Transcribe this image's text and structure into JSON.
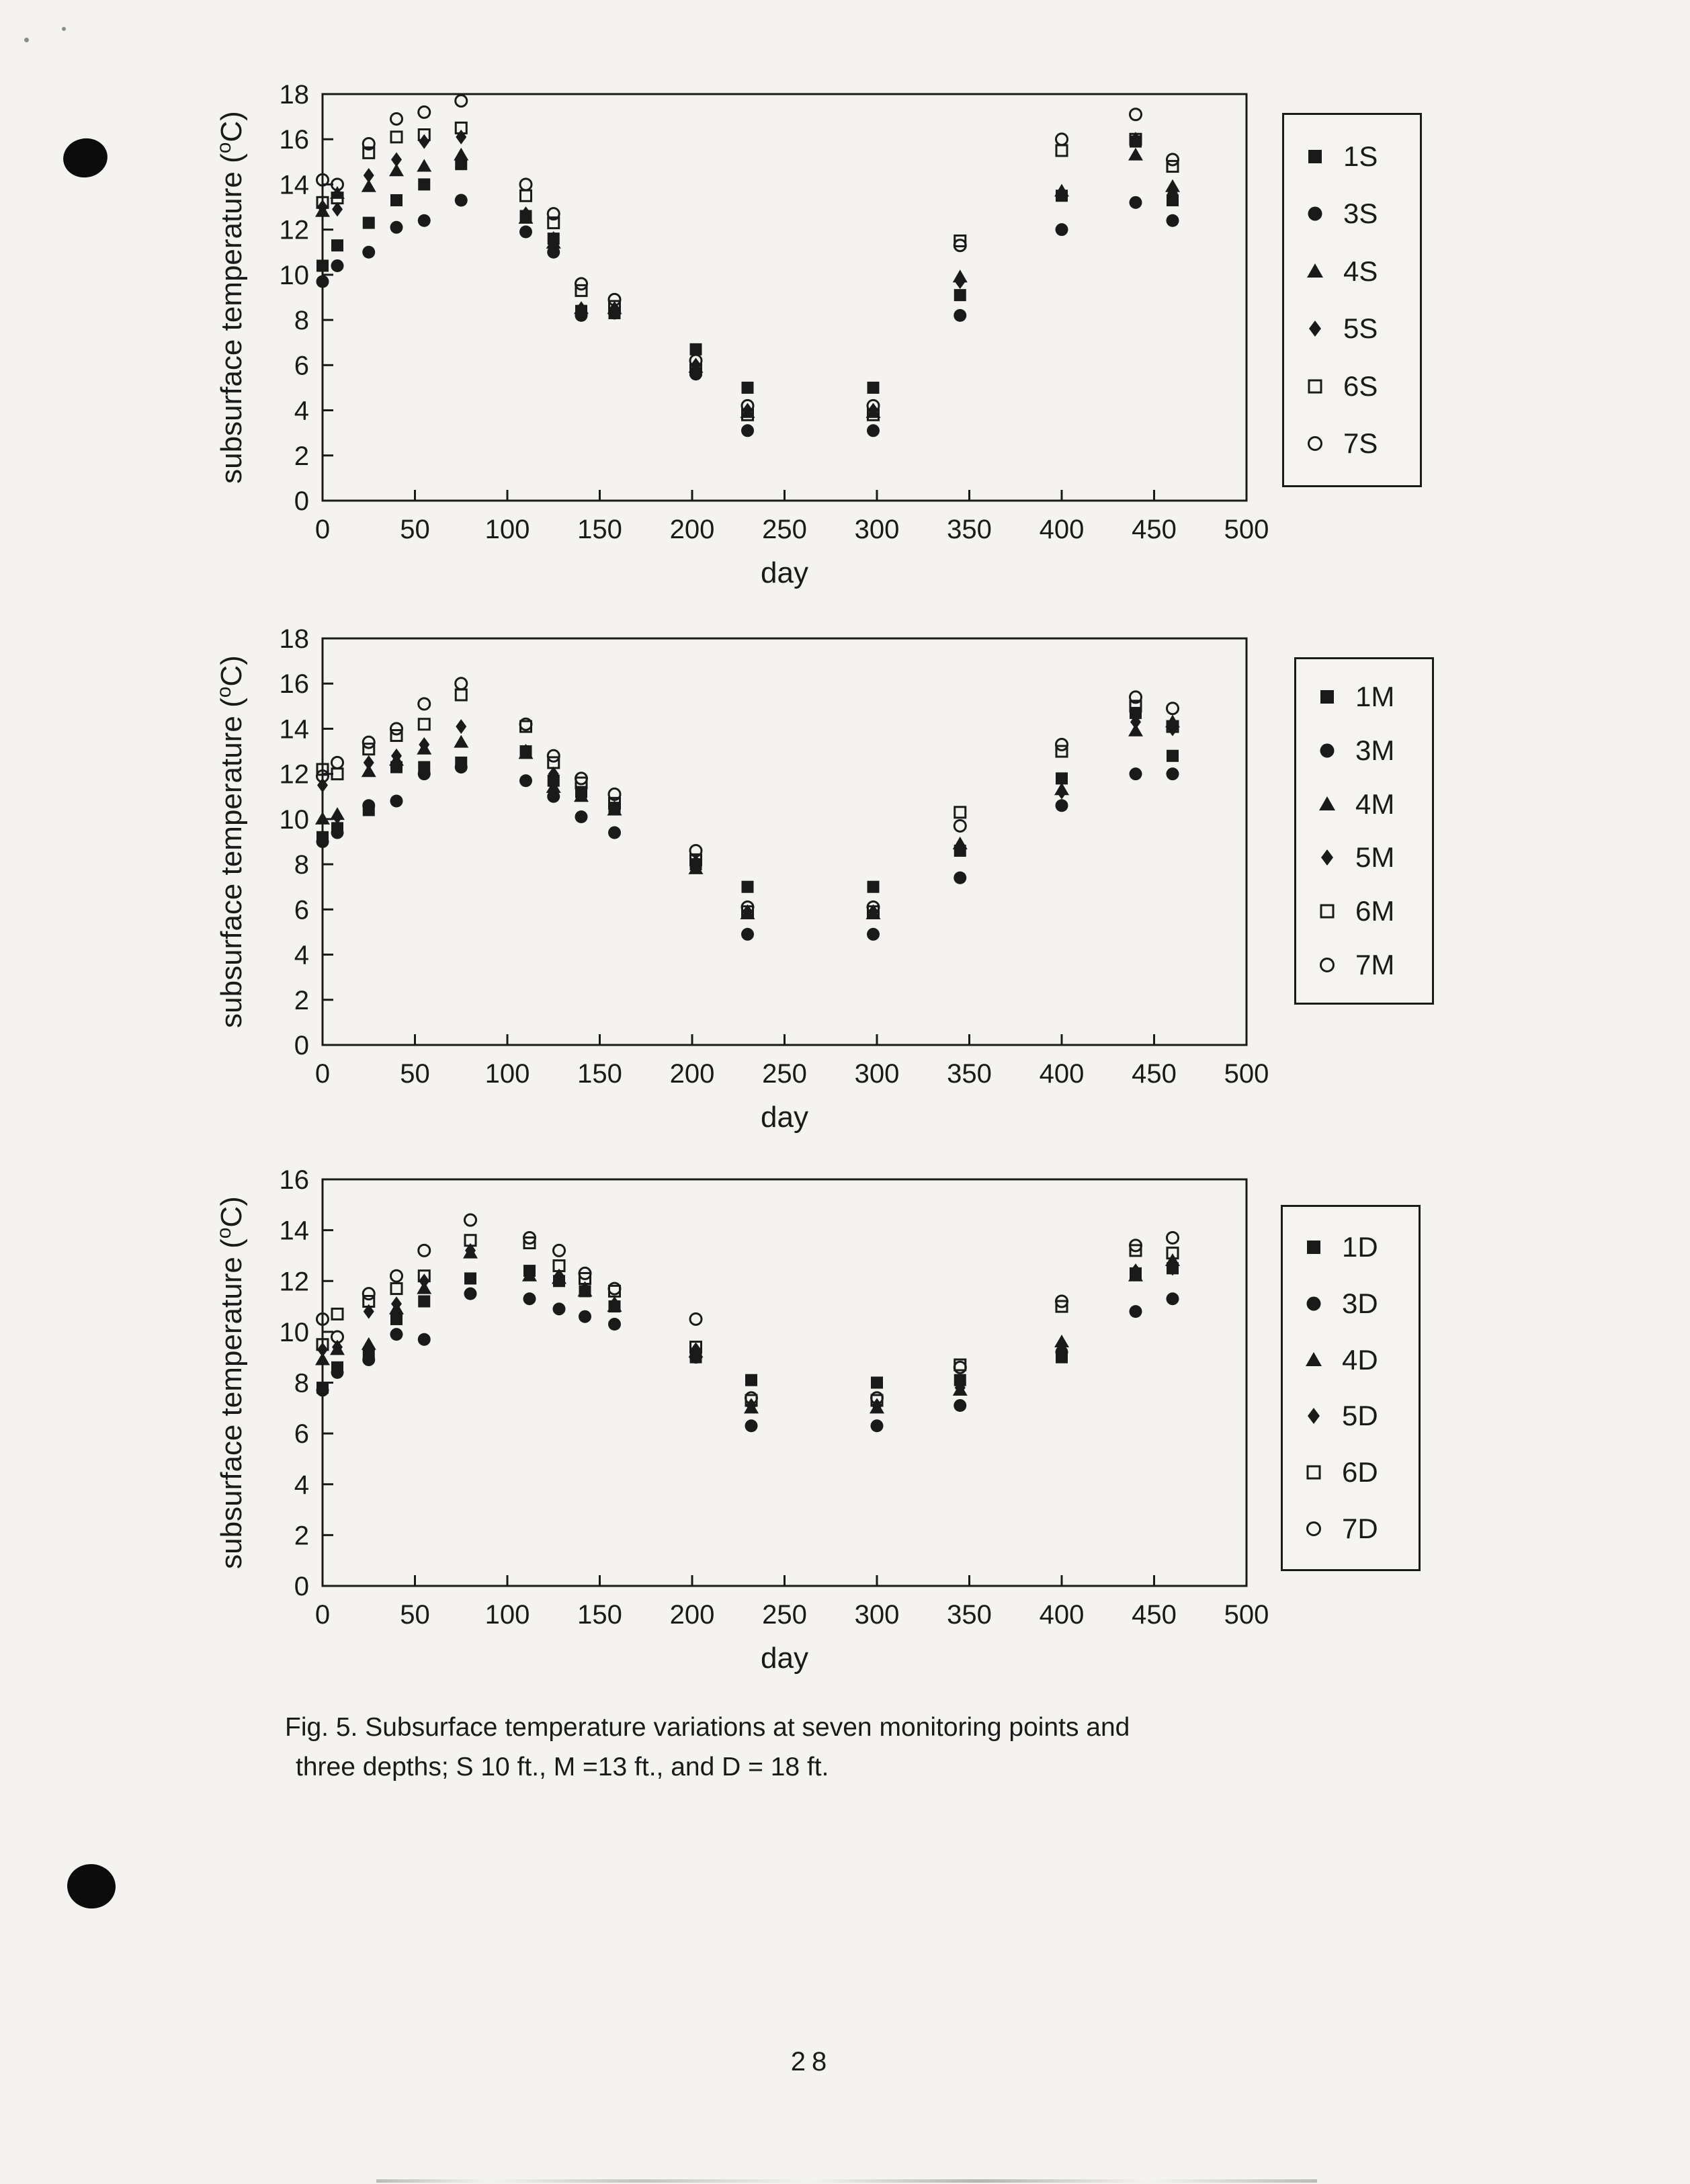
{
  "colors": {
    "ink": "#1a1a1a",
    "paper": "#f4f3ef"
  },
  "caption": {
    "line1": "Fig. 5.  Subsurface temperature variations at seven monitoring points and",
    "line2": "three depths; S 10 ft., M =13 ft., and D = 18 ft."
  },
  "page_number": "28",
  "chart_data": [
    {
      "type": "scatter",
      "title": "",
      "xlabel": "day",
      "ylabel": "subsurface temperature (°C)",
      "xlim": [
        0,
        500
      ],
      "ylim": [
        0,
        18
      ],
      "xticks": [
        0,
        50,
        100,
        150,
        200,
        250,
        300,
        350,
        400,
        450,
        500
      ],
      "yticks": [
        0,
        2,
        4,
        6,
        8,
        10,
        12,
        14,
        16,
        18
      ],
      "grid": false,
      "legend_position": "right-outside",
      "x": [
        0,
        8,
        25,
        40,
        55,
        75,
        110,
        125,
        140,
        158,
        202,
        230,
        298,
        345,
        400,
        440,
        460
      ],
      "series": [
        {
          "name": "1S",
          "marker": "filled-square",
          "values": [
            10.4,
            11.3,
            12.3,
            13.3,
            14.0,
            14.9,
            12.6,
            11.6,
            8.4,
            8.3,
            6.7,
            5.0,
            5.0,
            9.1,
            13.5,
            15.9,
            13.3
          ]
        },
        {
          "name": "3S",
          "marker": "filled-circle",
          "values": [
            9.7,
            10.4,
            11.0,
            12.1,
            12.4,
            13.3,
            11.9,
            11.0,
            8.2,
            8.3,
            5.6,
            3.1,
            3.1,
            8.2,
            12.0,
            13.2,
            12.4
          ]
        },
        {
          "name": "4S",
          "marker": "filled-triangle",
          "values": [
            12.8,
            13.6,
            13.9,
            14.6,
            14.8,
            15.3,
            12.5,
            11.4,
            8.5,
            8.5,
            5.9,
            3.9,
            3.9,
            9.9,
            13.7,
            15.3,
            13.9
          ]
        },
        {
          "name": "5S",
          "marker": "filled-diamond",
          "values": [
            13.0,
            12.9,
            14.4,
            15.1,
            15.9,
            16.1,
            12.7,
            11.6,
            8.5,
            8.5,
            6.0,
            4.0,
            4.0,
            9.7,
            13.6,
            16.0,
            13.6
          ]
        },
        {
          "name": "6S",
          "marker": "open-square",
          "values": [
            13.2,
            13.4,
            15.4,
            16.1,
            16.2,
            16.5,
            13.5,
            12.3,
            9.3,
            8.6,
            5.8,
            3.8,
            3.8,
            11.5,
            15.5,
            16.0,
            14.8
          ]
        },
        {
          "name": "7S",
          "marker": "open-circle",
          "values": [
            14.2,
            14.0,
            15.8,
            16.9,
            17.2,
            17.7,
            14.0,
            12.7,
            9.6,
            8.9,
            6.2,
            4.2,
            4.2,
            11.3,
            16.0,
            17.1,
            15.1
          ]
        }
      ]
    },
    {
      "type": "scatter",
      "title": "",
      "xlabel": "day",
      "ylabel": "subsurface temperature (°C)",
      "xlim": [
        0,
        500
      ],
      "ylim": [
        0,
        18
      ],
      "xticks": [
        0,
        50,
        100,
        150,
        200,
        250,
        300,
        350,
        400,
        450,
        500
      ],
      "yticks": [
        0,
        2,
        4,
        6,
        8,
        10,
        12,
        14,
        16,
        18
      ],
      "grid": false,
      "legend_position": "right-outside",
      "x": [
        0,
        8,
        25,
        40,
        55,
        75,
        110,
        125,
        140,
        158,
        202,
        230,
        298,
        345,
        400,
        440,
        460
      ],
      "series": [
        {
          "name": "1M",
          "marker": "filled-square",
          "values": [
            9.2,
            9.6,
            10.4,
            12.3,
            12.3,
            12.5,
            13.0,
            11.7,
            11.2,
            10.5,
            8.0,
            7.0,
            7.0,
            8.6,
            11.8,
            14.7,
            12.8
          ]
        },
        {
          "name": "3M",
          "marker": "filled-circle",
          "values": [
            9.0,
            9.4,
            10.6,
            10.8,
            12.0,
            12.3,
            11.7,
            11.0,
            10.1,
            9.4,
            8.0,
            4.9,
            4.9,
            7.4,
            10.6,
            12.0,
            12.0
          ]
        },
        {
          "name": "4M",
          "marker": "filled-triangle",
          "values": [
            10.0,
            10.2,
            12.1,
            12.6,
            13.1,
            13.4,
            12.9,
            11.4,
            11.0,
            10.4,
            7.8,
            5.8,
            5.8,
            8.9,
            11.3,
            13.9,
            14.3
          ]
        },
        {
          "name": "5M",
          "marker": "filled-diamond",
          "values": [
            11.5,
            10.1,
            12.5,
            12.8,
            13.3,
            14.1,
            13.0,
            12.0,
            11.1,
            10.5,
            8.1,
            5.9,
            5.9,
            8.8,
            11.2,
            14.3,
            14.0
          ]
        },
        {
          "name": "6M",
          "marker": "open-square",
          "values": [
            12.2,
            12.0,
            13.1,
            13.7,
            14.2,
            15.5,
            14.1,
            12.5,
            11.6,
            10.7,
            8.2,
            5.9,
            5.9,
            10.3,
            13.0,
            15.0,
            14.1
          ]
        },
        {
          "name": "7M",
          "marker": "open-circle",
          "values": [
            11.9,
            12.5,
            13.4,
            14.0,
            15.1,
            16.0,
            14.2,
            12.8,
            11.8,
            11.1,
            8.6,
            6.1,
            6.1,
            9.7,
            13.3,
            15.4,
            14.9
          ]
        }
      ]
    },
    {
      "type": "scatter",
      "title": "",
      "xlabel": "day",
      "ylabel": "subsurface temperature (°C)",
      "xlim": [
        0,
        500
      ],
      "ylim": [
        0,
        16
      ],
      "xticks": [
        0,
        50,
        100,
        150,
        200,
        250,
        300,
        350,
        400,
        450,
        500
      ],
      "yticks": [
        0,
        2,
        4,
        6,
        8,
        10,
        12,
        14,
        16
      ],
      "grid": false,
      "legend_position": "right-outside",
      "x": [
        0,
        8,
        25,
        40,
        55,
        80,
        112,
        128,
        142,
        158,
        202,
        232,
        300,
        345,
        400,
        440,
        460
      ],
      "series": [
        {
          "name": "1D",
          "marker": "filled-square",
          "values": [
            7.8,
            8.6,
            9.1,
            10.5,
            11.2,
            12.1,
            12.4,
            12.0,
            11.6,
            11.0,
            9.0,
            8.1,
            8.0,
            8.1,
            9.0,
            12.3,
            12.5
          ]
        },
        {
          "name": "3D",
          "marker": "filled-circle",
          "values": [
            7.7,
            8.4,
            8.9,
            9.9,
            9.7,
            11.5,
            11.3,
            10.9,
            10.6,
            10.3,
            9.0,
            6.3,
            6.3,
            7.1,
            9.2,
            10.8,
            11.3
          ]
        },
        {
          "name": "4D",
          "marker": "filled-triangle",
          "values": [
            8.9,
            9.3,
            9.5,
            10.9,
            11.7,
            13.1,
            12.2,
            12.1,
            11.6,
            11.0,
            9.2,
            7.0,
            7.0,
            7.7,
            9.6,
            12.2,
            12.8
          ]
        },
        {
          "name": "5D",
          "marker": "filled-diamond",
          "values": [
            9.3,
            9.4,
            10.8,
            11.1,
            12.0,
            13.2,
            12.3,
            12.2,
            11.7,
            11.1,
            9.3,
            7.1,
            7.1,
            7.8,
            9.5,
            12.4,
            12.5
          ]
        },
        {
          "name": "6D",
          "marker": "open-square",
          "values": [
            9.5,
            10.7,
            11.2,
            11.7,
            12.2,
            13.6,
            13.5,
            12.6,
            12.1,
            11.6,
            9.4,
            7.3,
            7.3,
            8.7,
            11.0,
            13.2,
            13.1
          ]
        },
        {
          "name": "7D",
          "marker": "open-circle",
          "values": [
            10.5,
            9.8,
            11.5,
            12.2,
            13.2,
            14.4,
            13.7,
            13.2,
            12.3,
            11.7,
            10.5,
            7.4,
            7.4,
            8.6,
            11.2,
            13.4,
            13.7
          ]
        }
      ]
    }
  ]
}
